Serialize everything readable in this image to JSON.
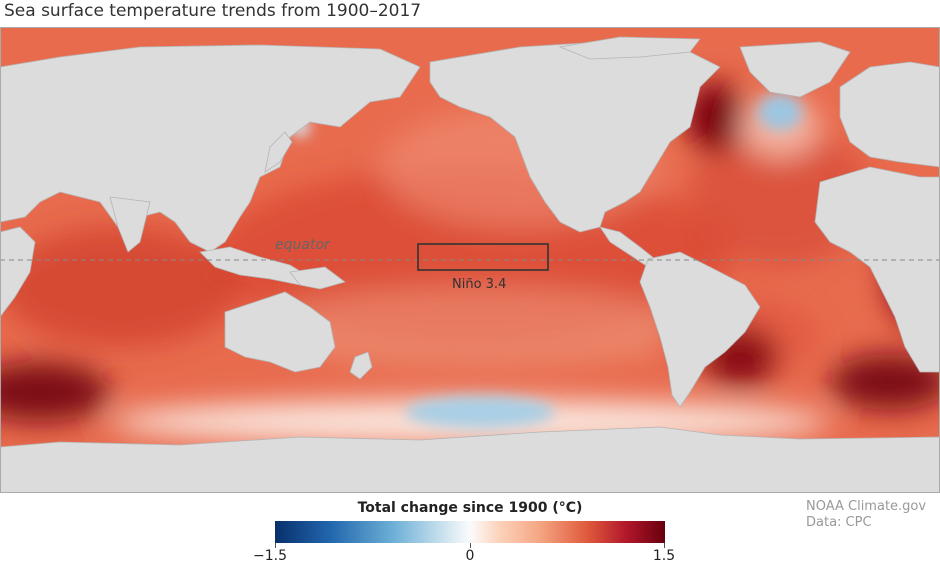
{
  "title": "Sea surface temperature trends from 1900–2017",
  "map": {
    "equator_label": "equator",
    "region_label": "Niño 3.4",
    "colors": {
      "land": "#dcdcdc",
      "ocean_warm": "#e35a43",
      "ocean_hot": "#7a0010",
      "ocean_cool": "#a6cde5",
      "equator_line": "#888888"
    }
  },
  "legend": {
    "title": "Total change since 1900 (°C)",
    "min_label": "−1.5",
    "mid_label": "0",
    "max_label": "1.5",
    "range": [
      -1.5,
      1.5
    ]
  },
  "credit": {
    "line1": "NOAA Climate.gov",
    "line2": "Data: CPC"
  }
}
